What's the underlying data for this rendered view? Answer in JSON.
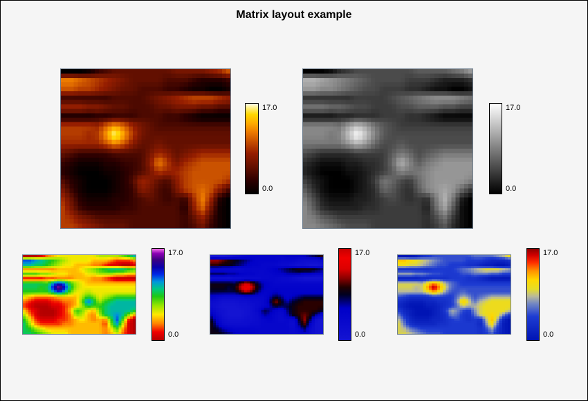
{
  "figure": {
    "background_color": "#f5f5f5",
    "frame_border_color": "#000000",
    "map_border_color": "#708090"
  },
  "chart_data": {
    "type": "heatmap",
    "title": "Matrix layout example",
    "zlim": [
      0.0,
      17.0
    ],
    "colorbar": {
      "max_label": "17.0",
      "min_label": "0.0"
    },
    "legend_position": "right of each panel",
    "grid": false,
    "panels": [
      {
        "name": "heat-large",
        "colormap": "heat",
        "position": "top-left",
        "size": "large"
      },
      {
        "name": "grayscale-large",
        "colormap": "grayscale",
        "position": "top-right",
        "size": "large"
      },
      {
        "name": "rainbow-small",
        "colormap": "rainbow",
        "position": "bottom-left",
        "size": "small"
      },
      {
        "name": "blue-black-red-small",
        "colormap": "blue_black_red",
        "position": "bottom-center",
        "size": "small"
      },
      {
        "name": "blue-yellow-red-small",
        "colormap": "blue_yellow_red",
        "position": "bottom-right",
        "size": "small"
      }
    ],
    "matrix_encoding": "Rows listed top-to-bottom; each character is one cell, base-18 (0-9,a-h) = value 0-17. Same matrix is shown in all five panels.",
    "matrix_rows": [
      "0001345555555666678a",
      "ccba9876555544432223",
      "aa998765544433211001",
      "333333444456789aaa98",
      "88877655444556665544",
      "11112233344433210000",
      "99998bdb865444444444",
      "99989dhd965555555555",
      "88888aca755655555555",
      "54333344446875678888",
      "32111223347c9689aaaa",
      "210001123469889aaaaa",
      "421000124875479aaaa9",
      "631000123764369aba74",
      "8521112234543438c820",
      "9632222334444427b610",
      "98654444444444358410",
      "99876555444444346310"
    ],
    "colormaps": {
      "heat": [
        [
          0,
          "#000000"
        ],
        [
          0.15,
          "#2e0000"
        ],
        [
          0.3,
          "#641000"
        ],
        [
          0.45,
          "#961e00"
        ],
        [
          0.57,
          "#c34b00"
        ],
        [
          0.68,
          "#eb7800"
        ],
        [
          0.78,
          "#ffaa00"
        ],
        [
          0.88,
          "#ffd700"
        ],
        [
          0.95,
          "#ffee7d"
        ],
        [
          1,
          "#fffff0"
        ]
      ],
      "grayscale": [
        [
          0,
          "#000000"
        ],
        [
          1,
          "#ffffff"
        ]
      ],
      "rainbow": [
        [
          0,
          "#b40000"
        ],
        [
          0.09,
          "#f00000"
        ],
        [
          0.18,
          "#ff8200"
        ],
        [
          0.28,
          "#ffe800"
        ],
        [
          0.38,
          "#96e600"
        ],
        [
          0.48,
          "#1ec814"
        ],
        [
          0.56,
          "#00c882"
        ],
        [
          0.64,
          "#0096dc"
        ],
        [
          0.72,
          "#0028e6"
        ],
        [
          0.8,
          "#0a00aa"
        ],
        [
          0.88,
          "#3c0082"
        ],
        [
          0.95,
          "#8c00b4"
        ],
        [
          1,
          "#f06ee6"
        ]
      ],
      "blue_black_red": [
        [
          0,
          "#1414d2"
        ],
        [
          0.35,
          "#0000c8"
        ],
        [
          0.5,
          "#000020"
        ],
        [
          0.58,
          "#200000"
        ],
        [
          0.68,
          "#8c0000"
        ],
        [
          0.78,
          "#dc0000"
        ],
        [
          0.9,
          "#f00000"
        ],
        [
          1,
          "#c80000"
        ]
      ],
      "blue_yellow_red": [
        [
          0,
          "#0014b4"
        ],
        [
          0.26,
          "#1e3cd2"
        ],
        [
          0.4,
          "#7387c3"
        ],
        [
          0.48,
          "#b9b99b"
        ],
        [
          0.56,
          "#e6dc28"
        ],
        [
          0.66,
          "#ffd700"
        ],
        [
          0.76,
          "#ff9100"
        ],
        [
          0.85,
          "#ff2d00"
        ],
        [
          0.93,
          "#d20000"
        ],
        [
          1,
          "#8c0000"
        ]
      ]
    }
  }
}
